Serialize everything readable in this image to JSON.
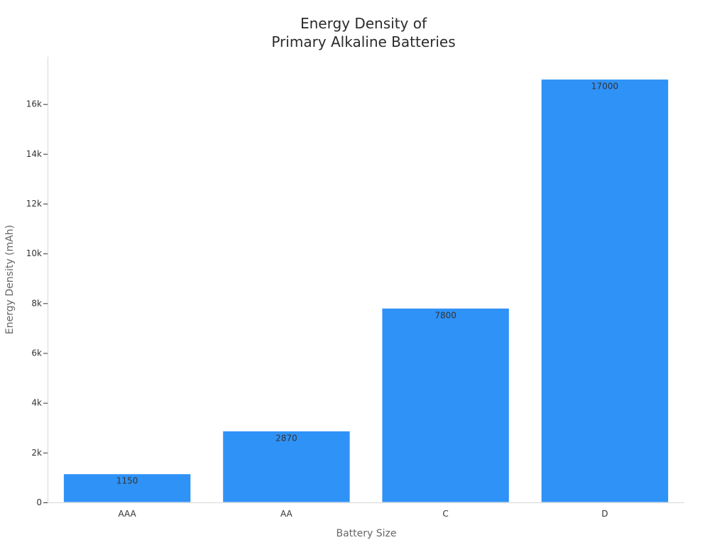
{
  "chart_data": {
    "type": "bar",
    "title_lines": [
      "Energy Density of",
      "Primary Alkaline Batteries"
    ],
    "xlabel": "Battery Size",
    "ylabel": "Energy Density (mAh)",
    "categories": [
      "AAA",
      "AA",
      "C",
      "D"
    ],
    "values": [
      1150,
      2870,
      7800,
      17000
    ],
    "data_labels": [
      "1150",
      "2870",
      "7800",
      "17000"
    ],
    "ylim": [
      0,
      17900
    ],
    "yticks": [
      0,
      2000,
      4000,
      6000,
      8000,
      10000,
      12000,
      14000,
      16000
    ],
    "ytick_labels": [
      "0",
      "2k",
      "4k",
      "6k",
      "8k",
      "10k",
      "12k",
      "14k",
      "16k"
    ],
    "bar_color": "#2f92f7",
    "grid": false,
    "legend": "none"
  }
}
